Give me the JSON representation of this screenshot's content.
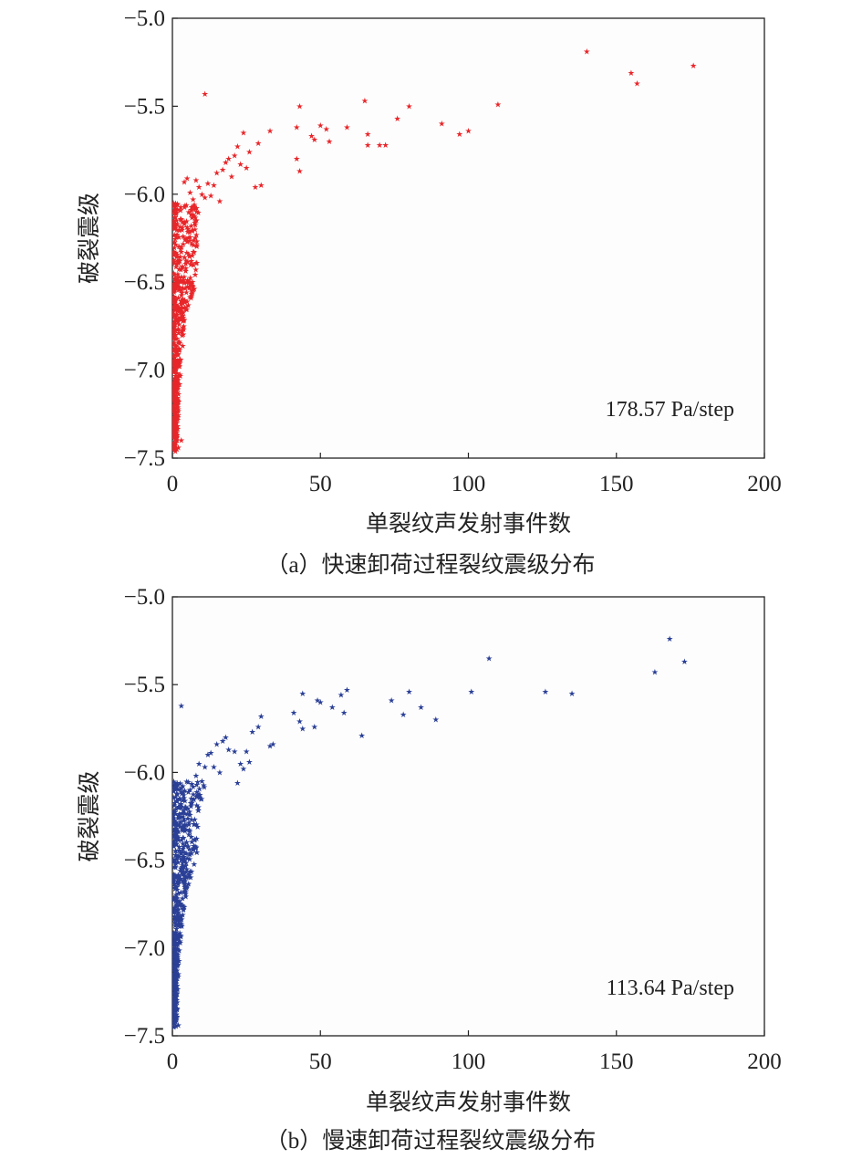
{
  "chart_data": [
    {
      "type": "scatter",
      "xlabel": "单裂纹声发射事件数",
      "ylabel": "破裂震级",
      "caption": "（a）快速卸荷过程裂纹震级分布",
      "annotation": "178.57 Pa/step",
      "xlim": [
        0,
        200
      ],
      "ylim": [
        -7.5,
        -5.0
      ],
      "xticks": [
        0,
        50,
        100,
        150,
        200
      ],
      "yticks": [
        -7.5,
        -7.0,
        -6.5,
        -6.0,
        -5.5,
        -5.0
      ],
      "xtick_labels": [
        "0",
        "50",
        "100",
        "150",
        "200"
      ],
      "ytick_labels": [
        "−7.5",
        "−7.0",
        "−6.5",
        "−6.0",
        "−5.5",
        "−5.0"
      ],
      "grid": false,
      "color": "#e8262a",
      "marker": "star",
      "points": [
        [
          140,
          -5.19
        ],
        [
          176,
          -5.27
        ],
        [
          155,
          -5.31
        ],
        [
          157,
          -5.37
        ],
        [
          11,
          -5.43
        ],
        [
          65,
          -5.47
        ],
        [
          80,
          -5.5
        ],
        [
          110,
          -5.49
        ],
        [
          43,
          -5.5
        ],
        [
          76,
          -5.57
        ],
        [
          42,
          -5.62
        ],
        [
          52,
          -5.63
        ],
        [
          50,
          -5.61
        ],
        [
          59,
          -5.62
        ],
        [
          91,
          -5.6
        ],
        [
          100,
          -5.64
        ],
        [
          97,
          -5.66
        ],
        [
          66,
          -5.66
        ],
        [
          33,
          -5.64
        ],
        [
          24,
          -5.65
        ],
        [
          47,
          -5.67
        ],
        [
          48,
          -5.69
        ],
        [
          53,
          -5.7
        ],
        [
          29,
          -5.71
        ],
        [
          22,
          -5.73
        ],
        [
          66,
          -5.72
        ],
        [
          70,
          -5.72
        ],
        [
          72,
          -5.72
        ],
        [
          42,
          -5.8
        ],
        [
          43,
          -5.87
        ],
        [
          18,
          -5.82
        ],
        [
          17,
          -5.86
        ],
        [
          15,
          -5.88
        ],
        [
          20,
          -5.9
        ],
        [
          25,
          -5.85
        ],
        [
          30,
          -5.95
        ],
        [
          28,
          -5.96
        ],
        [
          14,
          -5.95
        ],
        [
          12,
          -5.94
        ],
        [
          5,
          -5.91
        ],
        [
          8,
          -5.92
        ],
        [
          9,
          -5.96
        ],
        [
          10,
          -6.0
        ],
        [
          6,
          -5.99
        ],
        [
          11,
          -6.02
        ],
        [
          13,
          -6.01
        ],
        [
          16,
          -6.04
        ],
        [
          7,
          -6.03
        ],
        [
          4,
          -5.93
        ],
        [
          19,
          -5.8
        ],
        [
          21,
          -5.78
        ],
        [
          26,
          -5.76
        ],
        [
          23,
          -5.83
        ],
        [
          2,
          -7.44
        ],
        [
          1,
          -7.46
        ],
        [
          3,
          -7.4
        ],
        [
          1,
          -7.28
        ]
      ],
      "dense_band": [
        {
          "y": -6.05,
          "xmax": 10
        },
        {
          "y": -6.2,
          "xmax": 8
        },
        {
          "y": -6.4,
          "xmax": 8
        },
        {
          "y": -6.55,
          "xmax": 7
        },
        {
          "y": -6.7,
          "xmax": 4
        },
        {
          "y": -6.9,
          "xmax": 3
        },
        {
          "y": -7.1,
          "xmax": 2
        },
        {
          "y": -7.3,
          "xmax": 1.6
        },
        {
          "y": -7.45,
          "xmax": 1.2
        }
      ]
    },
    {
      "type": "scatter",
      "xlabel": "单裂纹声发射事件数",
      "ylabel": "破裂震级",
      "caption": "（b）慢速卸荷过程裂纹震级分布",
      "annotation": "113.64 Pa/step",
      "xlim": [
        0,
        200
      ],
      "ylim": [
        -7.5,
        -5.0
      ],
      "xticks": [
        0,
        50,
        100,
        150,
        200
      ],
      "yticks": [
        -7.5,
        -7.0,
        -6.5,
        -6.0,
        -5.5,
        -5.0
      ],
      "xtick_labels": [
        "0",
        "50",
        "100",
        "150",
        "200"
      ],
      "ytick_labels": [
        "−7.5",
        "−7.0",
        "−6.5",
        "−6.0",
        "−5.5",
        "−5.0"
      ],
      "grid": false,
      "color": "#2a3f96",
      "marker": "star",
      "points": [
        [
          168,
          -5.24
        ],
        [
          173,
          -5.37
        ],
        [
          107,
          -5.35
        ],
        [
          163,
          -5.43
        ],
        [
          126,
          -5.54
        ],
        [
          135,
          -5.55
        ],
        [
          101,
          -5.54
        ],
        [
          80,
          -5.54
        ],
        [
          59,
          -5.53
        ],
        [
          57,
          -5.56
        ],
        [
          44,
          -5.55
        ],
        [
          50,
          -5.6
        ],
        [
          49,
          -5.59
        ],
        [
          54,
          -5.63
        ],
        [
          74,
          -5.59
        ],
        [
          84,
          -5.63
        ],
        [
          78,
          -5.67
        ],
        [
          58,
          -5.66
        ],
        [
          41,
          -5.66
        ],
        [
          89,
          -5.7
        ],
        [
          30,
          -5.68
        ],
        [
          43,
          -5.71
        ],
        [
          48,
          -5.74
        ],
        [
          64,
          -5.79
        ],
        [
          44,
          -5.75
        ],
        [
          3,
          -5.62
        ],
        [
          29,
          -5.74
        ],
        [
          27,
          -5.77
        ],
        [
          34,
          -5.84
        ],
        [
          33,
          -5.85
        ],
        [
          18,
          -5.8
        ],
        [
          17,
          -5.82
        ],
        [
          19,
          -5.87
        ],
        [
          21,
          -5.88
        ],
        [
          25,
          -5.88
        ],
        [
          26,
          -5.94
        ],
        [
          23,
          -5.95
        ],
        [
          24,
          -5.98
        ],
        [
          15,
          -5.84
        ],
        [
          13,
          -5.89
        ],
        [
          12,
          -5.9
        ],
        [
          11,
          -5.97
        ],
        [
          9,
          -5.95
        ],
        [
          14,
          -5.97
        ],
        [
          8,
          -6.02
        ],
        [
          10,
          -6.05
        ],
        [
          16,
          -6.0
        ],
        [
          22,
          -6.06
        ],
        [
          7,
          -6.08
        ],
        [
          6,
          -6.1
        ],
        [
          2,
          -7.44
        ],
        [
          1,
          -7.42
        ],
        [
          1,
          -7.38
        ]
      ],
      "dense_band": [
        {
          "y": -6.05,
          "xmax": 11
        },
        {
          "y": -6.2,
          "xmax": 9
        },
        {
          "y": -6.35,
          "xmax": 8
        },
        {
          "y": -6.5,
          "xmax": 8
        },
        {
          "y": -6.65,
          "xmax": 5
        },
        {
          "y": -6.85,
          "xmax": 3
        },
        {
          "y": -7.05,
          "xmax": 2
        },
        {
          "y": -7.25,
          "xmax": 1.5
        },
        {
          "y": -7.45,
          "xmax": 1.1
        }
      ]
    }
  ]
}
